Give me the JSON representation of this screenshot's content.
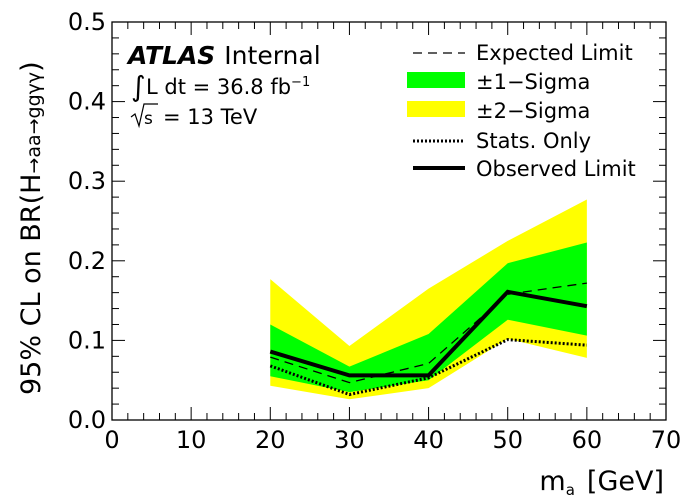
{
  "chart_data": {
    "type": "line",
    "xlabel": "m",
    "xlabel_sub": "a",
    "xlabel_unit": "[GeV]",
    "ylabel_main": "95% CL on BR(H",
    "ylabel_sub": "→aa→ggγγ",
    "ylabel_close": ")",
    "xlim": [
      0,
      70
    ],
    "ylim": [
      0,
      0.5
    ],
    "xticks": [
      0,
      10,
      20,
      30,
      40,
      50,
      60,
      70
    ],
    "xtick_labels": [
      "0",
      "10",
      "20",
      "30",
      "40",
      "50",
      "60",
      "70"
    ],
    "yticks": [
      0,
      0.1,
      0.2,
      0.3,
      0.4,
      0.5
    ],
    "ytick_labels": [
      "0.0",
      "0.1",
      "0.2",
      "0.3",
      "0.4",
      "0.5"
    ],
    "x": [
      20,
      30,
      40,
      50,
      60
    ],
    "series": [
      {
        "name": "Expected Limit",
        "style": "dashed",
        "values": [
          0.079,
          0.047,
          0.071,
          0.158,
          0.172
        ]
      },
      {
        "name": "±1−Sigma",
        "style": "band",
        "lower": [
          0.055,
          0.035,
          0.05,
          0.126,
          0.106
        ],
        "upper": [
          0.12,
          0.067,
          0.108,
          0.197,
          0.223
        ]
      },
      {
        "name": "±2−Sigma",
        "style": "band",
        "lower": [
          0.043,
          0.026,
          0.04,
          0.102,
          0.078
        ],
        "upper": [
          0.177,
          0.093,
          0.165,
          0.225,
          0.277
        ]
      },
      {
        "name": "Stats. Only",
        "style": "dotted",
        "values": [
          0.068,
          0.032,
          0.053,
          0.101,
          0.094
        ]
      },
      {
        "name": "Observed Limit",
        "style": "solid",
        "values": [
          0.086,
          0.056,
          0.056,
          0.161,
          0.143
        ]
      }
    ],
    "legend_placement": "top-right",
    "grid": false,
    "colors": {
      "band1": "#00ff00",
      "band2": "#ffff00",
      "line": "#000000"
    }
  },
  "annotation": {
    "atlas": "ATLAS",
    "internal": "Internal",
    "lumi_prefix": "L dt = 36.8 fb",
    "lumi_exp": "−1",
    "energy": "= 13 TeV",
    "energy_symbol": "s"
  }
}
